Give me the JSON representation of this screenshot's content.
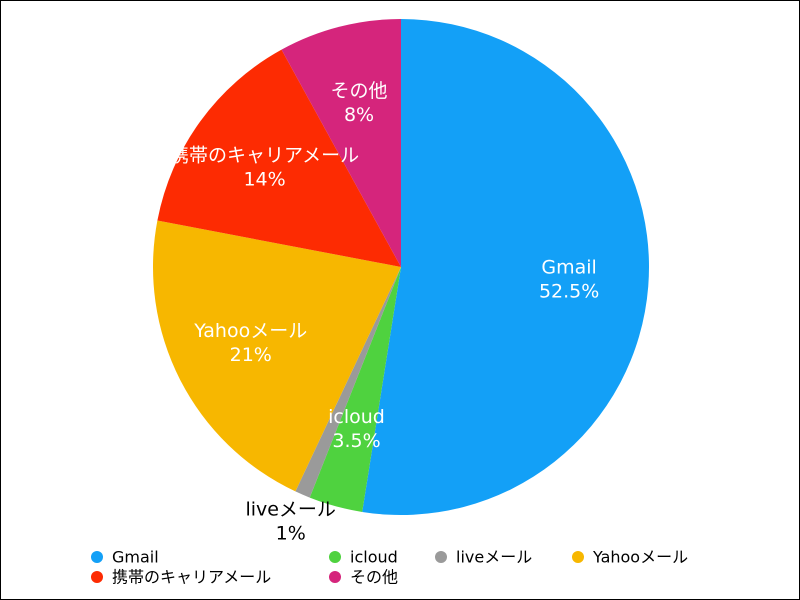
{
  "chart_data": {
    "type": "pie",
    "categories": [
      "Gmail",
      "icloud",
      "liveメール",
      "Yahooメール",
      "携帯のキャリアメール",
      "その他"
    ],
    "values": [
      52.5,
      3.5,
      1,
      21,
      14,
      8
    ],
    "value_labels": [
      "52.5%",
      "3.5%",
      "1%",
      "21%",
      "14%",
      "8%"
    ],
    "colors": [
      "#13a0f7",
      "#4fd23f",
      "#9a9a9a",
      "#f7b700",
      "#fd2b02",
      "#d5257c"
    ],
    "legend": "bottom"
  }
}
